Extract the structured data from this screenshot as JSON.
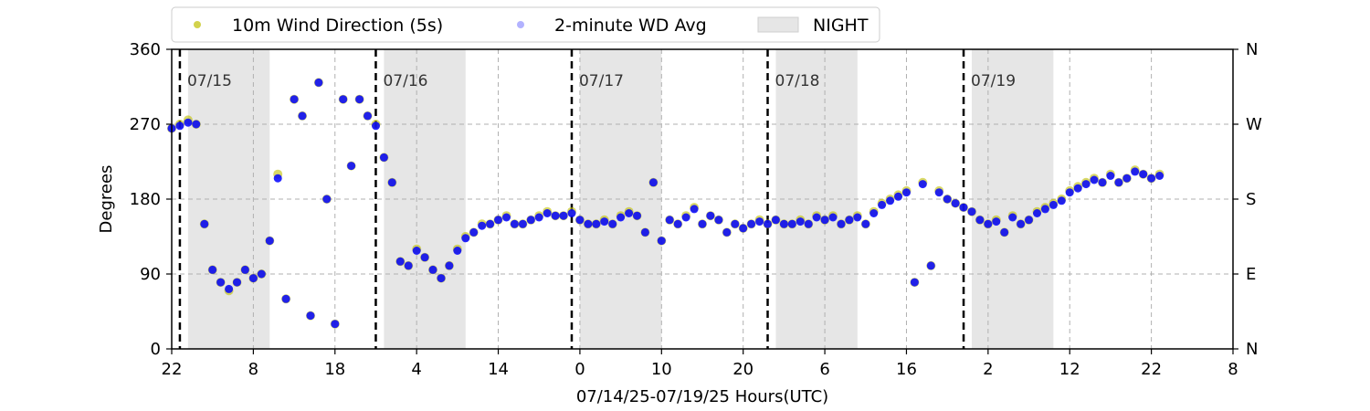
{
  "chart_data": {
    "type": "scatter",
    "xlabel": "07/14/25-07/19/25  Hours(UTC)",
    "ylabel": "Degrees",
    "xlim": [
      0,
      130
    ],
    "ylim": [
      0,
      360
    ],
    "x_ticks": [
      {
        "value": 0,
        "label": "22"
      },
      {
        "value": 10,
        "label": "8"
      },
      {
        "value": 20,
        "label": "18"
      },
      {
        "value": 30,
        "label": "4"
      },
      {
        "value": 40,
        "label": "14"
      },
      {
        "value": 50,
        "label": "0"
      },
      {
        "value": 60,
        "label": "10"
      },
      {
        "value": 70,
        "label": "20"
      },
      {
        "value": 80,
        "label": "6"
      },
      {
        "value": 90,
        "label": "16"
      },
      {
        "value": 100,
        "label": "2"
      },
      {
        "value": 110,
        "label": "12"
      },
      {
        "value": 120,
        "label": "22"
      },
      {
        "value": 130,
        "label": "8"
      }
    ],
    "y_ticks": [
      0,
      90,
      180,
      270,
      360
    ],
    "y2_ticks": [
      {
        "value": 0,
        "label": "N"
      },
      {
        "value": 90,
        "label": "E"
      },
      {
        "value": 180,
        "label": "S"
      },
      {
        "value": 270,
        "label": "W"
      },
      {
        "value": 360,
        "label": "N"
      }
    ],
    "grid": true,
    "legend_position": "top",
    "legend": [
      {
        "label": "10m Wind Direction (5s)",
        "color": "#bfbf00",
        "kind": "marker"
      },
      {
        "label": "2-minute WD Avg",
        "color": "#0000ff",
        "kind": "marker-faint"
      },
      {
        "label": "NIGHT",
        "color": "#e6e6e6",
        "kind": "patch"
      }
    ],
    "night_periods": [
      [
        2,
        12
      ],
      [
        26,
        36
      ],
      [
        50,
        60
      ],
      [
        74,
        84
      ],
      [
        98,
        108
      ]
    ],
    "day_markers": [
      {
        "x": 1,
        "label": "07/15"
      },
      {
        "x": 25,
        "label": "07/16"
      },
      {
        "x": 49,
        "label": "07/17"
      },
      {
        "x": 73,
        "label": "07/18"
      },
      {
        "x": 97,
        "label": "07/19"
      }
    ],
    "series": [
      {
        "name": "10m Wind Direction (5s)",
        "color": "#bfbf00",
        "x": [
          0,
          1,
          2,
          3,
          4,
          5,
          6,
          7,
          8,
          9,
          10,
          11,
          12,
          13,
          14,
          15,
          16,
          17,
          18,
          19,
          20,
          21,
          22,
          23,
          24,
          25,
          26,
          27,
          28,
          29,
          30,
          31,
          32,
          33,
          34,
          35,
          36,
          37,
          38,
          39,
          40,
          41,
          42,
          43,
          44,
          45,
          46,
          47,
          48,
          49,
          50,
          51,
          52,
          53,
          54,
          55,
          56,
          57,
          58,
          59,
          60,
          61,
          62,
          63,
          64,
          65,
          66,
          67,
          68,
          69,
          70,
          71,
          72,
          73,
          74,
          75,
          76,
          77,
          78,
          79,
          80,
          81,
          82,
          83,
          84,
          85,
          86,
          87,
          88,
          89,
          90,
          91,
          92,
          93,
          94,
          95,
          96,
          97,
          98,
          99,
          100,
          101,
          102,
          103,
          104,
          105,
          106,
          107,
          108,
          109,
          110,
          111,
          112,
          113,
          114,
          115,
          116,
          117,
          118,
          119,
          120,
          121
        ],
        "y": [
          265,
          270,
          275,
          270,
          150,
          95,
          80,
          70,
          80,
          95,
          85,
          90,
          130,
          210,
          60,
          300,
          280,
          40,
          320,
          180,
          30,
          300,
          220,
          300,
          280,
          270,
          230,
          200,
          105,
          100,
          120,
          110,
          95,
          85,
          100,
          120,
          135,
          140,
          150,
          150,
          155,
          160,
          150,
          150,
          155,
          160,
          165,
          160,
          160,
          165,
          155,
          150,
          150,
          155,
          150,
          160,
          165,
          160,
          140,
          200,
          130,
          155,
          150,
          160,
          170,
          150,
          160,
          155,
          140,
          150,
          145,
          150,
          155,
          150,
          155,
          150,
          150,
          155,
          150,
          160,
          155,
          160,
          150,
          155,
          160,
          150,
          165,
          175,
          180,
          185,
          190,
          80,
          200,
          100,
          190,
          180,
          175,
          170,
          165,
          155,
          150,
          155,
          140,
          160,
          150,
          155,
          165,
          170,
          175,
          180,
          190,
          195,
          200,
          205,
          200,
          210,
          200,
          205,
          215,
          210,
          205,
          210
        ]
      },
      {
        "name": "2-minute WD Avg",
        "color": "#0000ff",
        "x": [
          0,
          1,
          2,
          3,
          4,
          5,
          6,
          7,
          8,
          9,
          10,
          11,
          12,
          13,
          14,
          15,
          16,
          17,
          18,
          19,
          20,
          21,
          22,
          23,
          24,
          25,
          26,
          27,
          28,
          29,
          30,
          31,
          32,
          33,
          34,
          35,
          36,
          37,
          38,
          39,
          40,
          41,
          42,
          43,
          44,
          45,
          46,
          47,
          48,
          49,
          50,
          51,
          52,
          53,
          54,
          55,
          56,
          57,
          58,
          59,
          60,
          61,
          62,
          63,
          64,
          65,
          66,
          67,
          68,
          69,
          70,
          71,
          72,
          73,
          74,
          75,
          76,
          77,
          78,
          79,
          80,
          81,
          82,
          83,
          84,
          85,
          86,
          87,
          88,
          89,
          90,
          91,
          92,
          93,
          94,
          95,
          96,
          97,
          98,
          99,
          100,
          101,
          102,
          103,
          104,
          105,
          106,
          107,
          108,
          109,
          110,
          111,
          112,
          113,
          114,
          115,
          116,
          117,
          118,
          119,
          120,
          121
        ],
        "y": [
          265,
          268,
          272,
          270,
          150,
          95,
          80,
          72,
          80,
          95,
          85,
          90,
          130,
          205,
          60,
          300,
          280,
          40,
          320,
          180,
          30,
          300,
          220,
          300,
          280,
          268,
          230,
          200,
          105,
          100,
          118,
          110,
          95,
          85,
          100,
          118,
          133,
          140,
          148,
          150,
          155,
          158,
          150,
          150,
          155,
          158,
          163,
          160,
          160,
          163,
          155,
          150,
          150,
          153,
          150,
          158,
          163,
          160,
          140,
          200,
          130,
          155,
          150,
          158,
          168,
          150,
          160,
          155,
          140,
          150,
          145,
          150,
          153,
          150,
          155,
          150,
          150,
          153,
          150,
          158,
          155,
          158,
          150,
          155,
          158,
          150,
          163,
          173,
          178,
          183,
          188,
          80,
          198,
          100,
          188,
          180,
          175,
          170,
          165,
          155,
          150,
          153,
          140,
          158,
          150,
          155,
          163,
          168,
          173,
          178,
          188,
          193,
          198,
          203,
          200,
          208,
          200,
          205,
          213,
          210,
          205,
          208
        ]
      }
    ]
  }
}
